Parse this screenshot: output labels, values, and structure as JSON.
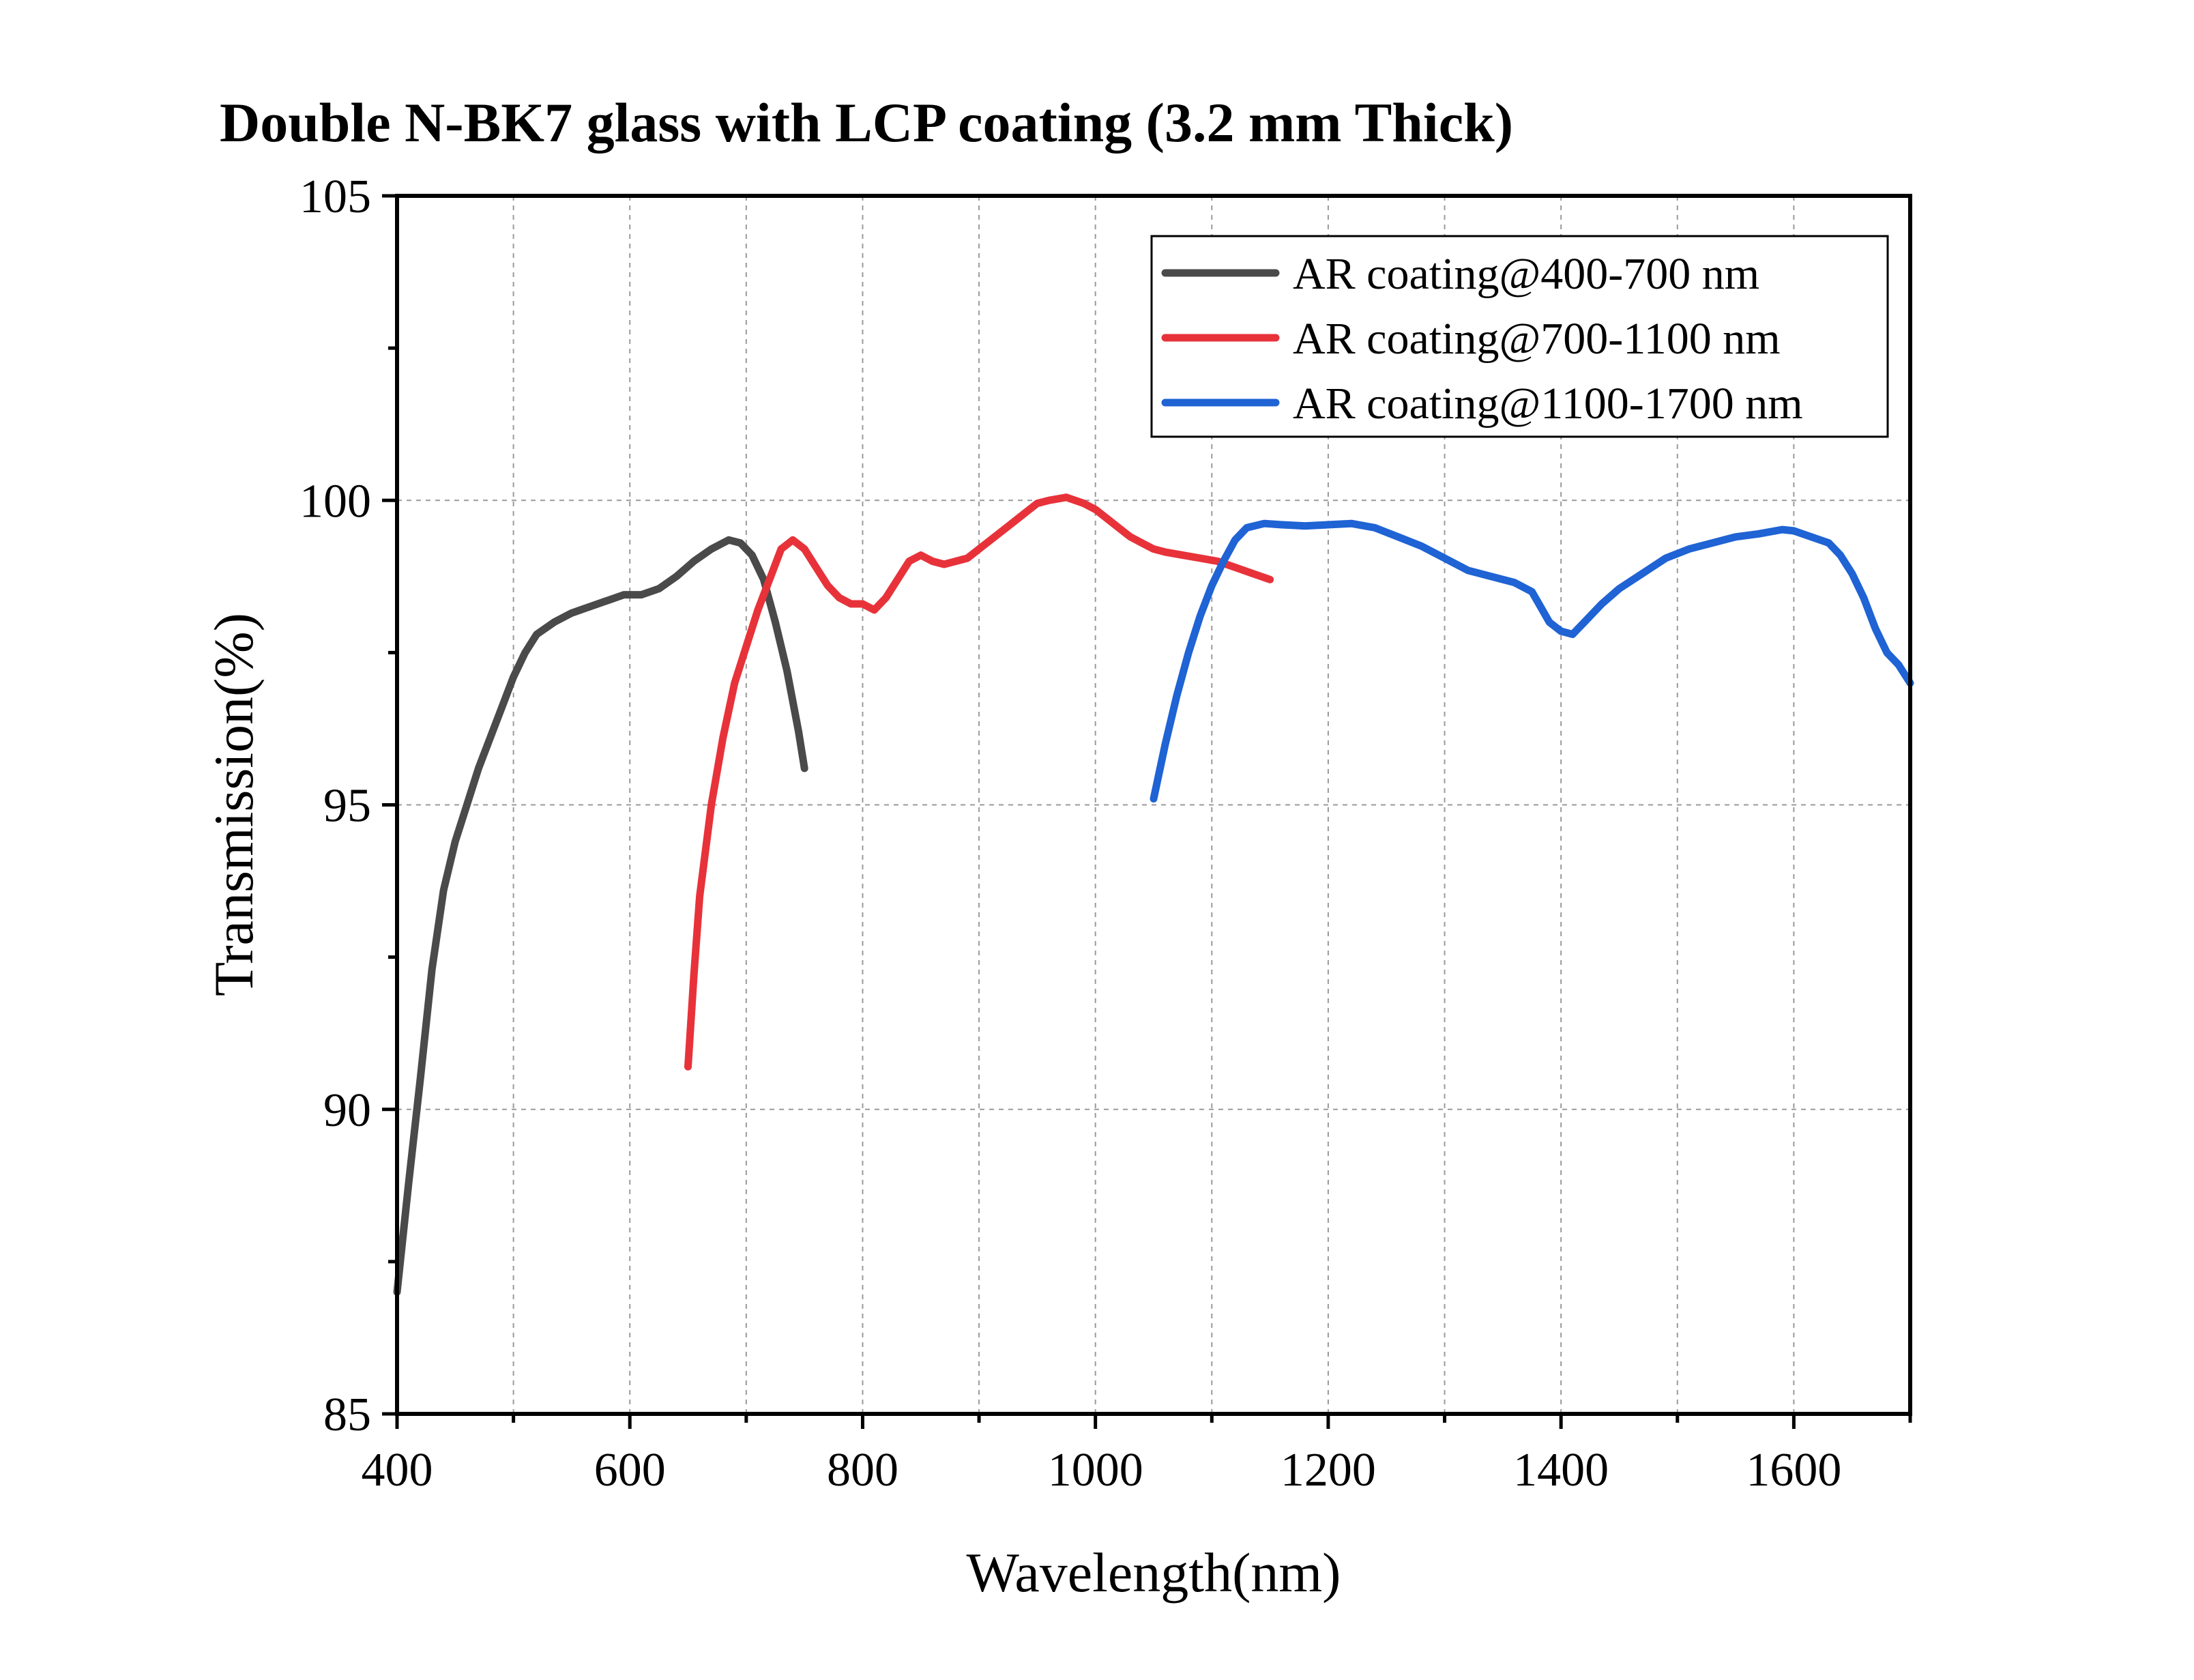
{
  "chart_data": {
    "type": "line",
    "title": "Double N-BK7 glass with LCP coating (3.2 mm Thick)",
    "xlabel": "Wavelength(nm)",
    "ylabel": "Transmission(%)",
    "xlim": [
      400,
      1700
    ],
    "ylim": [
      85,
      105
    ],
    "xticks": [
      400,
      600,
      800,
      1000,
      1200,
      1400,
      1600
    ],
    "yticks": [
      85,
      90,
      95,
      100,
      105
    ],
    "grid": true,
    "legend_position": "top-right",
    "series": [
      {
        "name": "AR coating@400-700 nm",
        "color": "#4a4a4a",
        "points": [
          [
            400,
            87.0
          ],
          [
            410,
            88.8
          ],
          [
            420,
            90.5
          ],
          [
            430,
            92.3
          ],
          [
            440,
            93.6
          ],
          [
            450,
            94.4
          ],
          [
            460,
            95.0
          ],
          [
            470,
            95.6
          ],
          [
            480,
            96.1
          ],
          [
            490,
            96.6
          ],
          [
            500,
            97.1
          ],
          [
            510,
            97.5
          ],
          [
            520,
            97.8
          ],
          [
            535,
            98.0
          ],
          [
            550,
            98.15
          ],
          [
            565,
            98.25
          ],
          [
            580,
            98.35
          ],
          [
            595,
            98.45
          ],
          [
            610,
            98.45
          ],
          [
            625,
            98.55
          ],
          [
            640,
            98.75
          ],
          [
            655,
            99.0
          ],
          [
            670,
            99.2
          ],
          [
            685,
            99.35
          ],
          [
            695,
            99.3
          ],
          [
            705,
            99.1
          ],
          [
            715,
            98.7
          ],
          [
            725,
            98.0
          ],
          [
            735,
            97.2
          ],
          [
            745,
            96.2
          ],
          [
            750,
            95.6
          ]
        ]
      },
      {
        "name": "AR coating@700-1100 nm",
        "color": "#e8323a",
        "points": [
          [
            650,
            90.7
          ],
          [
            655,
            92.2
          ],
          [
            660,
            93.5
          ],
          [
            670,
            95.0
          ],
          [
            680,
            96.1
          ],
          [
            690,
            97.0
          ],
          [
            700,
            97.6
          ],
          [
            710,
            98.2
          ],
          [
            720,
            98.7
          ],
          [
            730,
            99.2
          ],
          [
            740,
            99.35
          ],
          [
            750,
            99.2
          ],
          [
            760,
            98.9
          ],
          [
            770,
            98.6
          ],
          [
            780,
            98.4
          ],
          [
            790,
            98.3
          ],
          [
            800,
            98.3
          ],
          [
            810,
            98.2
          ],
          [
            820,
            98.4
          ],
          [
            830,
            98.7
          ],
          [
            840,
            99.0
          ],
          [
            850,
            99.1
          ],
          [
            860,
            99.0
          ],
          [
            870,
            98.95
          ],
          [
            880,
            99.0
          ],
          [
            890,
            99.05
          ],
          [
            900,
            99.2
          ],
          [
            910,
            99.35
          ],
          [
            920,
            99.5
          ],
          [
            930,
            99.65
          ],
          [
            940,
            99.8
          ],
          [
            950,
            99.95
          ],
          [
            960,
            100.0
          ],
          [
            975,
            100.05
          ],
          [
            990,
            99.95
          ],
          [
            1000,
            99.85
          ],
          [
            1010,
            99.7
          ],
          [
            1020,
            99.55
          ],
          [
            1030,
            99.4
          ],
          [
            1040,
            99.3
          ],
          [
            1050,
            99.2
          ],
          [
            1060,
            99.15
          ],
          [
            1075,
            99.1
          ],
          [
            1090,
            99.05
          ],
          [
            1105,
            99.0
          ],
          [
            1120,
            98.9
          ],
          [
            1135,
            98.8
          ],
          [
            1150,
            98.7
          ]
        ]
      },
      {
        "name": "AR coating@1100-1700 nm",
        "color": "#1f63d4",
        "points": [
          [
            1050,
            95.1
          ],
          [
            1060,
            96.0
          ],
          [
            1070,
            96.8
          ],
          [
            1080,
            97.5
          ],
          [
            1090,
            98.1
          ],
          [
            1100,
            98.6
          ],
          [
            1110,
            99.0
          ],
          [
            1120,
            99.35
          ],
          [
            1130,
            99.55
          ],
          [
            1145,
            99.62
          ],
          [
            1160,
            99.6
          ],
          [
            1180,
            99.58
          ],
          [
            1200,
            99.6
          ],
          [
            1220,
            99.62
          ],
          [
            1240,
            99.55
          ],
          [
            1260,
            99.4
          ],
          [
            1280,
            99.25
          ],
          [
            1300,
            99.05
          ],
          [
            1320,
            98.85
          ],
          [
            1340,
            98.75
          ],
          [
            1360,
            98.65
          ],
          [
            1375,
            98.5
          ],
          [
            1390,
            98.0
          ],
          [
            1400,
            97.85
          ],
          [
            1410,
            97.8
          ],
          [
            1420,
            98.0
          ],
          [
            1435,
            98.3
          ],
          [
            1450,
            98.55
          ],
          [
            1470,
            98.8
          ],
          [
            1490,
            99.05
          ],
          [
            1510,
            99.2
          ],
          [
            1530,
            99.3
          ],
          [
            1550,
            99.4
          ],
          [
            1570,
            99.45
          ],
          [
            1590,
            99.52
          ],
          [
            1600,
            99.5
          ],
          [
            1615,
            99.4
          ],
          [
            1630,
            99.3
          ],
          [
            1640,
            99.1
          ],
          [
            1650,
            98.8
          ],
          [
            1660,
            98.4
          ],
          [
            1670,
            97.9
          ],
          [
            1680,
            97.5
          ],
          [
            1690,
            97.3
          ],
          [
            1700,
            97.0
          ]
        ]
      }
    ]
  }
}
